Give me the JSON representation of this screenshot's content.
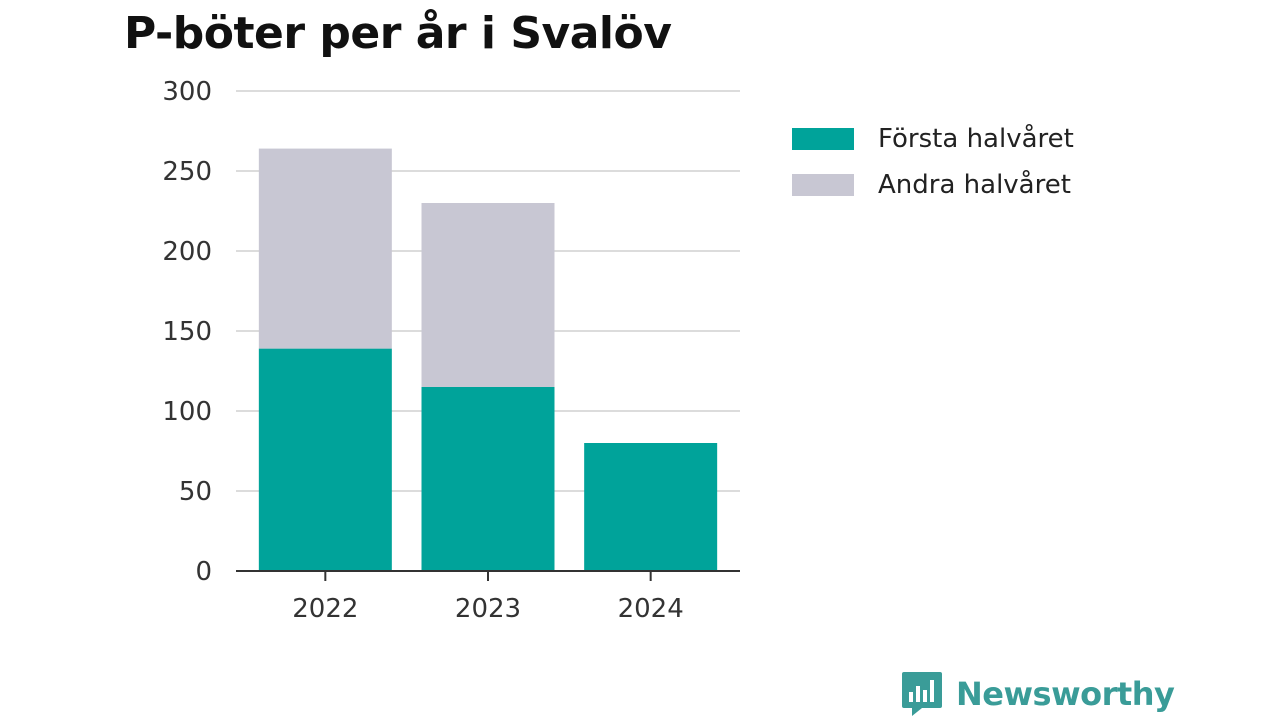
{
  "chart_data": {
    "type": "bar",
    "stacked": true,
    "title": "P-böter per år i Svalöv",
    "xlabel": "",
    "ylabel": "",
    "categories": [
      "2022",
      "2023",
      "2024"
    ],
    "series": [
      {
        "name": "Första halvåret",
        "color": "#00a39a",
        "values": [
          139,
          115,
          80
        ]
      },
      {
        "name": "Andra halvåret",
        "color": "#c8c7d3",
        "values": [
          125,
          115,
          0
        ]
      }
    ],
    "ylim": [
      0,
      300
    ],
    "yticks": [
      0,
      50,
      100,
      150,
      200,
      250,
      300
    ],
    "grid": true,
    "legend": "right"
  },
  "brand": {
    "name": "Newsworthy",
    "icon": "newsworthy-logo-icon",
    "color": "#3a9c98"
  }
}
